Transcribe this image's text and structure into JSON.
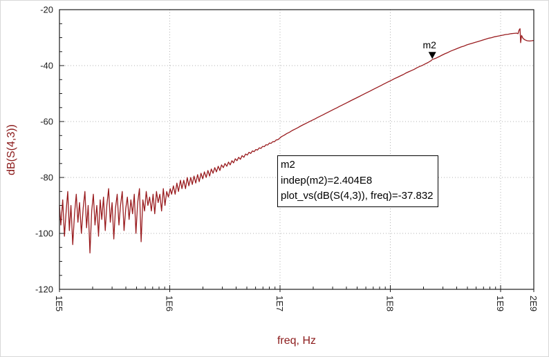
{
  "colors": {
    "trace": "#991b1e",
    "axis_label": "#8b1a1a",
    "grid": "#b0b0b0",
    "frame": "#1a1a1a",
    "background": "#ffffff"
  },
  "chart_data": {
    "type": "line",
    "title": "",
    "xlabel": "freq, Hz",
    "ylabel": "dB(S(4,3))",
    "x_scale": "log",
    "xlim": [
      100000.0,
      2000000000.0
    ],
    "ylim": [
      -120,
      -20
    ],
    "grid": "dotted",
    "x_ticks": [
      {
        "value": 100000.0,
        "label": "1E5"
      },
      {
        "value": 1000000.0,
        "label": "1E6"
      },
      {
        "value": 10000000.0,
        "label": "1E7"
      },
      {
        "value": 100000000.0,
        "label": "1E8"
      },
      {
        "value": 1000000000.0,
        "label": "1E9"
      },
      {
        "value": 2000000000.0,
        "label": "2E9"
      }
    ],
    "y_ticks": [
      {
        "value": -20,
        "label": "-20"
      },
      {
        "value": -40,
        "label": "-40"
      },
      {
        "value": -60,
        "label": "-60"
      },
      {
        "value": -80,
        "label": "-80"
      },
      {
        "value": -100,
        "label": "-100"
      },
      {
        "value": -120,
        "label": "-120"
      }
    ],
    "marker": {
      "name": "m2",
      "label": "m2",
      "x": 240400000.0,
      "y": -37.832,
      "info_lines": [
        "m2",
        "indep(m2)=2.404E8",
        "plot_vs(dB(S(4,3)), freq)=-37.832"
      ]
    },
    "series": [
      {
        "name": "dB(S(4,3))",
        "color": "#991b1e",
        "points": [
          [
            100000.0,
            -90
          ],
          [
            103000.0,
            -97
          ],
          [
            107000.0,
            -88
          ],
          [
            111000.0,
            -101
          ],
          [
            115000.0,
            -92
          ],
          [
            119000.0,
            -85
          ],
          [
            123000.0,
            -99
          ],
          [
            127000.0,
            -90
          ],
          [
            132000.0,
            -104
          ],
          [
            137000.0,
            -93
          ],
          [
            142000.0,
            -86
          ],
          [
            147000.0,
            -96
          ],
          [
            152000.0,
            -89
          ],
          [
            158000.0,
            -100
          ],
          [
            164000.0,
            -91
          ],
          [
            170000.0,
            -85
          ],
          [
            176000.0,
            -98
          ],
          [
            182000.0,
            -90
          ],
          [
            189000.0,
            -107
          ],
          [
            196000.0,
            -92
          ],
          [
            203000.0,
            -86
          ],
          [
            210000.0,
            -97
          ],
          [
            218000.0,
            -90
          ],
          [
            226000.0,
            -101
          ],
          [
            234000.0,
            -88
          ],
          [
            242000.0,
            -95
          ],
          [
            251000.0,
            -87
          ],
          [
            260000.0,
            -99
          ],
          [
            269000.0,
            -90
          ],
          [
            279000.0,
            -84
          ],
          [
            289000.0,
            -96
          ],
          [
            300000.0,
            -89
          ],
          [
            311000.0,
            -102
          ],
          [
            322000.0,
            -91
          ],
          [
            334000.0,
            -86
          ],
          [
            346000.0,
            -97
          ],
          [
            358000.0,
            -90
          ],
          [
            371000.0,
            -85
          ],
          [
            385000.0,
            -99
          ],
          [
            399000.0,
            -91
          ],
          [
            413000.0,
            -87
          ],
          [
            428000.0,
            -95
          ],
          [
            444000.0,
            -88
          ],
          [
            460000.0,
            -93
          ],
          [
            477000.0,
            -86
          ],
          [
            494000.0,
            -100
          ],
          [
            512000.0,
            -89
          ],
          [
            531000.0,
            -84
          ],
          [
            550000.0,
            -103
          ],
          [
            570000.0,
            -88
          ],
          [
            591000.0,
            -92
          ],
          [
            612000.0,
            -85
          ],
          [
            634000.0,
            -90
          ],
          [
            657000.0,
            -87
          ],
          [
            681000.0,
            -92
          ],
          [
            706000.0,
            -86
          ],
          [
            731000.0,
            -93
          ],
          [
            758000.0,
            -85
          ],
          [
            785000.0,
            -89
          ],
          [
            814000.0,
            -86
          ],
          [
            843000.0,
            -92
          ],
          [
            874000.0,
            -84
          ],
          [
            905000.0,
            -90
          ],
          [
            938000.0,
            -85
          ],
          [
            972000.0,
            -87
          ],
          [
            1010000.0,
            -84
          ],
          [
            1040000.0,
            -86
          ],
          [
            1080000.0,
            -83
          ],
          [
            1120000.0,
            -86
          ],
          [
            1160000.0,
            -82
          ],
          [
            1200000.0,
            -85
          ],
          [
            1250000.0,
            -81
          ],
          [
            1290000.0,
            -84
          ],
          [
            1340000.0,
            -81
          ],
          [
            1390000.0,
            -84
          ],
          [
            1440000.0,
            -80
          ],
          [
            1490000.0,
            -83
          ],
          [
            1550000.0,
            -80
          ],
          [
            1600000.0,
            -82.5
          ],
          [
            1660000.0,
            -79.5
          ],
          [
            1720000.0,
            -82
          ],
          [
            1790000.0,
            -79
          ],
          [
            1850000.0,
            -81.5
          ],
          [
            1920000.0,
            -78.5
          ],
          [
            1990000.0,
            -80.5
          ],
          [
            2060000.0,
            -78
          ],
          [
            2140000.0,
            -80
          ],
          [
            2220000.0,
            -77.5
          ],
          [
            2300000.0,
            -79.5
          ],
          [
            2380000.0,
            -77
          ],
          [
            2470000.0,
            -78.5
          ],
          [
            2560000.0,
            -76.5
          ],
          [
            2650000.0,
            -78
          ],
          [
            2750000.0,
            -76
          ],
          [
            2850000.0,
            -77.5
          ],
          [
            2950000.0,
            -75.5
          ],
          [
            3060000.0,
            -76.5
          ],
          [
            3170000.0,
            -75
          ],
          [
            3290000.0,
            -76
          ],
          [
            3410000.0,
            -74.5
          ],
          [
            3530000.0,
            -75.5
          ],
          [
            3660000.0,
            -74
          ],
          [
            3790000.0,
            -74.8
          ],
          [
            3930000.0,
            -73.3
          ],
          [
            4070000.0,
            -74
          ],
          [
            4220000.0,
            -72.8
          ],
          [
            4370000.0,
            -73.5
          ],
          [
            4530000.0,
            -72.2
          ],
          [
            4700000.0,
            -72.8
          ],
          [
            4870000.0,
            -71.6
          ],
          [
            5050000.0,
            -72
          ],
          [
            5230000.0,
            -71
          ],
          [
            5420000.0,
            -71.4
          ],
          [
            5620000.0,
            -70.5
          ],
          [
            5820000.0,
            -70.8
          ],
          [
            6030000.0,
            -70
          ],
          [
            6250000.0,
            -70.2
          ],
          [
            6480000.0,
            -69.4
          ],
          [
            6710000.0,
            -69.6
          ],
          [
            6950000.0,
            -68.9
          ],
          [
            7200000.0,
            -69
          ],
          [
            7460000.0,
            -68.3
          ],
          [
            7730000.0,
            -68.4
          ],
          [
            8010000.0,
            -67.7
          ],
          [
            8300000.0,
            -67.8
          ],
          [
            8600000.0,
            -67.2
          ],
          [
            8910000.0,
            -67.2
          ],
          [
            9230000.0,
            -66.6
          ],
          [
            9570000.0,
            -66.5
          ],
          [
            9910000.0,
            -66
          ],
          [
            10300000.0,
            -65.4
          ],
          [
            10900000.0,
            -64.9
          ],
          [
            11500000.0,
            -64.3
          ],
          [
            12200000.0,
            -63.8
          ],
          [
            12900000.0,
            -63.2
          ],
          [
            13700000.0,
            -62.7
          ],
          [
            14500000.0,
            -62.2
          ],
          [
            15400000.0,
            -61.6
          ],
          [
            16300000.0,
            -61.1
          ],
          [
            17300000.0,
            -60.6
          ],
          [
            18300000.0,
            -60.1
          ],
          [
            19400000.0,
            -59.6
          ],
          [
            20600000.0,
            -59.1
          ],
          [
            21800000.0,
            -58.6
          ],
          [
            23100000.0,
            -58.1
          ],
          [
            24500000.0,
            -57.6
          ],
          [
            25900000.0,
            -57.1
          ],
          [
            27500000.0,
            -56.6
          ],
          [
            29100000.0,
            -56.1
          ],
          [
            30800000.0,
            -55.6
          ],
          [
            32700000.0,
            -55.1
          ],
          [
            34600000.0,
            -54.6
          ],
          [
            36700000.0,
            -54.1
          ],
          [
            38900000.0,
            -53.6
          ],
          [
            41200000.0,
            -53.1
          ],
          [
            43600000.0,
            -52.6
          ],
          [
            46200000.0,
            -52.1
          ],
          [
            49000000.0,
            -51.6
          ],
          [
            51900000.0,
            -51.1
          ],
          [
            55000000.0,
            -50.6
          ],
          [
            58200000.0,
            -50.1
          ],
          [
            61700000.0,
            -49.6
          ],
          [
            65400000.0,
            -49.1
          ],
          [
            69300000.0,
            -48.6
          ],
          [
            73400000.0,
            -48.1
          ],
          [
            77800000.0,
            -47.6
          ],
          [
            82400000.0,
            -47.1
          ],
          [
            87300000.0,
            -46.6
          ],
          [
            92500000.0,
            -46.1
          ],
          [
            98000000.0,
            -45.6
          ],
          [
            104000000.0,
            -45.1
          ],
          [
            110000000.0,
            -44.6
          ],
          [
            116000000.0,
            -44.2
          ],
          [
            123000000.0,
            -43.7
          ],
          [
            131000000.0,
            -43.2
          ],
          [
            138000000.0,
            -42.7
          ],
          [
            147000000.0,
            -42.2
          ],
          [
            155000000.0,
            -41.8
          ],
          [
            165000000.0,
            -41.3
          ],
          [
            174000000.0,
            -40.8
          ],
          [
            185000000.0,
            -40.3
          ],
          [
            196000000.0,
            -39.9
          ],
          [
            207000000.0,
            -39.4
          ],
          [
            220000000.0,
            -38.9
          ],
          [
            233000000.0,
            -38.3
          ],
          [
            240400000.0,
            -37.832
          ],
          [
            261000000.0,
            -37.3
          ],
          [
            277000000.0,
            -36.8
          ],
          [
            293000000.0,
            -36.3
          ],
          [
            311000000.0,
            -35.8
          ],
          [
            329000000.0,
            -35.4
          ],
          [
            349000000.0,
            -34.9
          ],
          [
            370000000.0,
            -34.5
          ],
          [
            392000000.0,
            -34.1
          ],
          [
            415000000.0,
            -33.7
          ],
          [
            440000000.0,
            -33.3
          ],
          [
            466000000.0,
            -33.0
          ],
          [
            494000000.0,
            -32.6
          ],
          [
            523000000.0,
            -32.3
          ],
          [
            554000000.0,
            -32.0
          ],
          [
            587000000.0,
            -31.7
          ],
          [
            622000000.0,
            -31.4
          ],
          [
            659000000.0,
            -31.1
          ],
          [
            698000000.0,
            -30.8
          ],
          [
            740000000.0,
            -30.5
          ],
          [
            784000000.0,
            -30.2
          ],
          [
            831000000.0,
            -30.0
          ],
          [
            880000000.0,
            -29.7
          ],
          [
            933000000.0,
            -29.5
          ],
          [
            988000000.0,
            -29.3
          ],
          [
            1050000000.0,
            -29.1
          ],
          [
            1110000000.0,
            -28.9
          ],
          [
            1170000000.0,
            -28.8
          ],
          [
            1240000000.0,
            -28.6
          ],
          [
            1320000000.0,
            -28.5
          ],
          [
            1400000000.0,
            -28.4
          ],
          [
            1440000000.0,
            -28.6
          ],
          [
            1470000000.0,
            -27.3
          ],
          [
            1500000000.0,
            -26.8
          ],
          [
            1520000000.0,
            -31.8
          ],
          [
            1550000000.0,
            -29.2
          ],
          [
            1600000000.0,
            -30.3
          ],
          [
            1660000000.0,
            -30.8
          ],
          [
            1740000000.0,
            -31.1
          ],
          [
            1830000000.0,
            -31.2
          ],
          [
            1920000000.0,
            -31.1
          ],
          [
            2000000000.0,
            -31.0
          ]
        ]
      }
    ]
  }
}
